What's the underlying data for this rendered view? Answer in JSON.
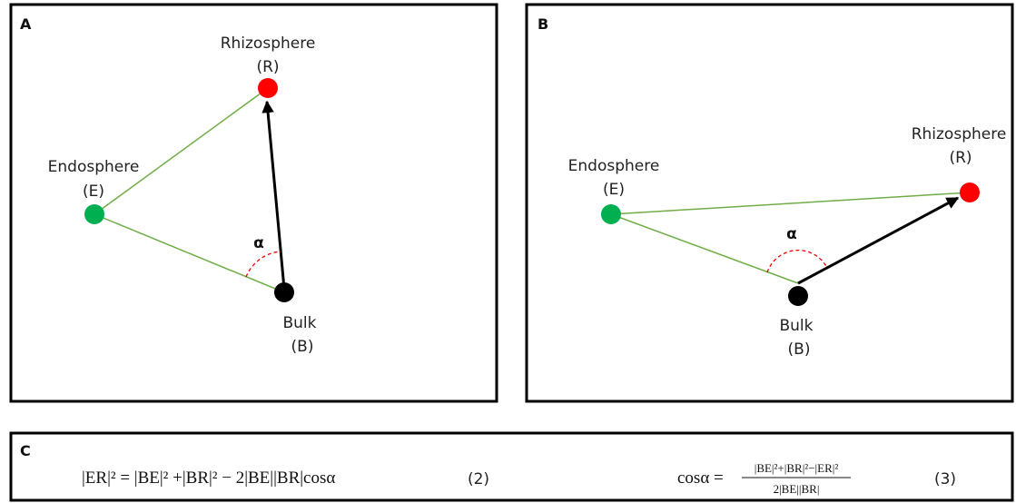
{
  "panels": [
    {
      "label": "A",
      "nodes": {
        "rhizosphere": {
          "name": "Rhizosphere",
          "abbr": "(R)"
        },
        "endosphere": {
          "name": "Endosphere",
          "abbr": "(E)"
        },
        "bulk": {
          "name": "Bulk",
          "abbr": "(B)"
        }
      },
      "angle": "α"
    },
    {
      "label": "B",
      "nodes": {
        "rhizosphere": {
          "name": "Rhizosphere",
          "abbr": "(R)"
        },
        "endosphere": {
          "name": "Endosphere",
          "abbr": "(E)"
        },
        "bulk": {
          "name": "Bulk",
          "abbr": "(B)"
        }
      },
      "angle": "α"
    }
  ],
  "equations": {
    "label": "C",
    "eq2": {
      "text": "|ER|² = |BE|² +|BR|² − 2|BE||BR|cosα",
      "number": "(2)"
    },
    "eq3": {
      "lhs": "cosα =",
      "numerator": "|BE|²+|BR|²−|ER|²",
      "denominator": "2|BE||BR|",
      "number": "(3)"
    }
  }
}
